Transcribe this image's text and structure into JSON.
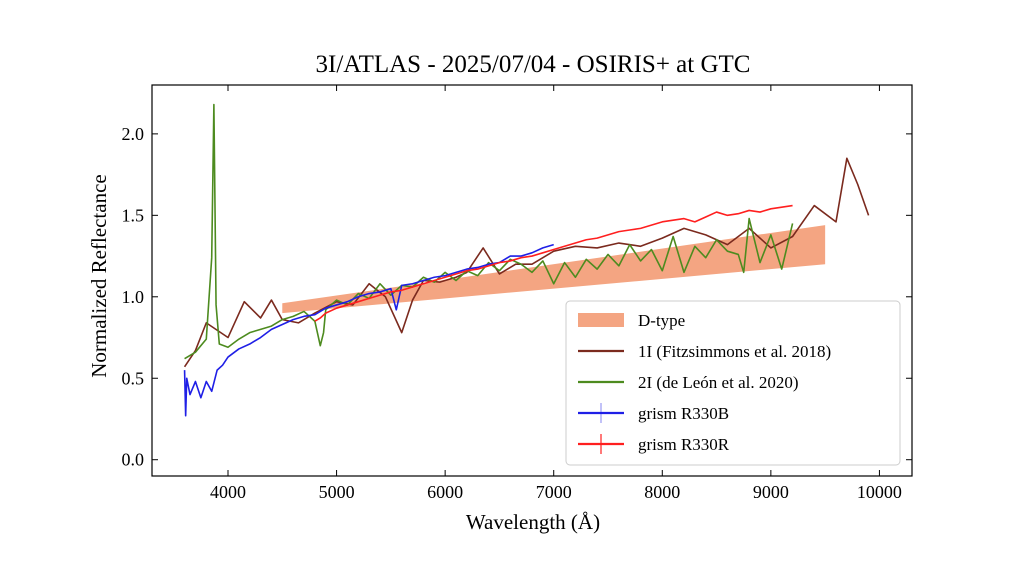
{
  "chart_data": {
    "type": "line",
    "title": "3I/ATLAS - 2025/07/04 - OSIRIS+ at GTC",
    "xlabel": "Wavelength (Å)",
    "ylabel": "Normalized Reflectance",
    "xlim": [
      3300,
      10300
    ],
    "ylim": [
      -0.1,
      2.3
    ],
    "xticks": [
      4000,
      5000,
      6000,
      7000,
      8000,
      9000,
      10000
    ],
    "xtick_labels": [
      "4000",
      "5000",
      "6000",
      "7000",
      "8000",
      "9000",
      "10000"
    ],
    "yticks": [
      0.0,
      0.5,
      1.0,
      1.5,
      2.0
    ],
    "ytick_labels": [
      "0.0",
      "0.5",
      "1.0",
      "1.5",
      "2.0"
    ],
    "grid": false,
    "legend_position": "lower-right",
    "series": [
      {
        "name": "D-type",
        "kind": "band",
        "color": "#f4a582",
        "x": [
          4500,
          9500
        ],
        "lower": [
          0.9,
          1.2
        ],
        "upper": [
          0.96,
          1.44
        ]
      },
      {
        "name": "1I (Fitzsimmons et al. 2018)",
        "kind": "line",
        "color": "#7b2a1e",
        "x": [
          3600,
          3700,
          3800,
          4000,
          4150,
          4300,
          4400,
          4500,
          4650,
          4800,
          5000,
          5150,
          5300,
          5450,
          5600,
          5700,
          5800,
          5950,
          6100,
          6200,
          6350,
          6500,
          6650,
          6800,
          7000,
          7200,
          7400,
          7600,
          7800,
          8000,
          8200,
          8400,
          8600,
          8800,
          9000,
          9200,
          9400,
          9600,
          9700,
          9800,
          9900
        ],
        "y": [
          0.57,
          0.67,
          0.84,
          0.75,
          0.97,
          0.87,
          0.98,
          0.86,
          0.84,
          0.9,
          0.97,
          0.95,
          1.08,
          1.0,
          0.78,
          0.98,
          1.1,
          1.09,
          1.12,
          1.15,
          1.3,
          1.14,
          1.2,
          1.2,
          1.28,
          1.31,
          1.3,
          1.33,
          1.31,
          1.36,
          1.42,
          1.38,
          1.32,
          1.42,
          1.3,
          1.37,
          1.56,
          1.46,
          1.85,
          1.69,
          1.5
        ]
      },
      {
        "name": "2I (de León et al. 2020)",
        "kind": "line",
        "color": "#4d8b1f",
        "x": [
          3600,
          3700,
          3800,
          3850,
          3870,
          3890,
          3920,
          4000,
          4100,
          4200,
          4300,
          4400,
          4500,
          4600,
          4700,
          4800,
          4850,
          4880,
          4900,
          5000,
          5100,
          5200,
          5300,
          5400,
          5500,
          5600,
          5700,
          5800,
          5900,
          6000,
          6100,
          6200,
          6300,
          6400,
          6500,
          6600,
          6700,
          6800,
          6900,
          7000,
          7100,
          7200,
          7300,
          7400,
          7500,
          7600,
          7700,
          7800,
          7900,
          8000,
          8100,
          8200,
          8300,
          8400,
          8500,
          8600,
          8700,
          8750,
          8800,
          8900,
          9000,
          9100,
          9200
        ],
        "y": [
          0.62,
          0.66,
          0.74,
          1.24,
          2.18,
          0.95,
          0.71,
          0.69,
          0.74,
          0.78,
          0.8,
          0.82,
          0.86,
          0.88,
          0.91,
          0.85,
          0.7,
          0.78,
          0.92,
          0.98,
          0.95,
          1.02,
          0.99,
          1.08,
          1.01,
          1.07,
          1.06,
          1.12,
          1.09,
          1.15,
          1.1,
          1.16,
          1.13,
          1.21,
          1.16,
          1.23,
          1.2,
          1.15,
          1.22,
          1.08,
          1.21,
          1.12,
          1.23,
          1.17,
          1.26,
          1.19,
          1.32,
          1.22,
          1.29,
          1.16,
          1.37,
          1.15,
          1.31,
          1.24,
          1.35,
          1.28,
          1.26,
          1.15,
          1.48,
          1.21,
          1.38,
          1.17,
          1.45
        ]
      },
      {
        "name": "grism R330B",
        "kind": "line",
        "color": "#1f1fe6",
        "x": [
          3600,
          3610,
          3620,
          3650,
          3700,
          3750,
          3800,
          3850,
          3900,
          3950,
          4000,
          4100,
          4200,
          4300,
          4400,
          4500,
          4600,
          4700,
          4800,
          4900,
          5000,
          5100,
          5200,
          5300,
          5400,
          5500,
          5550,
          5600,
          5700,
          5800,
          5900,
          6000,
          6100,
          6200,
          6300,
          6400,
          6500,
          6600,
          6700,
          6800,
          6900,
          7000
        ],
        "y": [
          0.55,
          0.27,
          0.5,
          0.4,
          0.48,
          0.38,
          0.48,
          0.42,
          0.55,
          0.58,
          0.63,
          0.68,
          0.71,
          0.75,
          0.8,
          0.83,
          0.86,
          0.88,
          0.89,
          0.93,
          0.95,
          0.97,
          1.0,
          1.02,
          1.03,
          1.05,
          0.92,
          1.07,
          1.08,
          1.1,
          1.12,
          1.13,
          1.15,
          1.17,
          1.18,
          1.2,
          1.21,
          1.25,
          1.25,
          1.27,
          1.3,
          1.32
        ]
      },
      {
        "name": "grism R330R",
        "kind": "line",
        "color": "#ff1f1f",
        "x": [
          4800,
          4850,
          4900,
          5000,
          5100,
          5200,
          5300,
          5400,
          5500,
          5600,
          5700,
          5800,
          5900,
          6000,
          6100,
          6200,
          6300,
          6400,
          6500,
          6600,
          6700,
          6800,
          6900,
          7000,
          7100,
          7200,
          7300,
          7400,
          7500,
          7600,
          7700,
          7800,
          7900,
          8000,
          8100,
          8200,
          8300,
          8400,
          8500,
          8600,
          8700,
          8800,
          8900,
          9000,
          9100,
          9200
        ],
        "y": [
          0.85,
          0.87,
          0.9,
          0.93,
          0.95,
          0.97,
          0.99,
          1.01,
          1.03,
          1.04,
          1.06,
          1.08,
          1.1,
          1.12,
          1.14,
          1.16,
          1.17,
          1.19,
          1.21,
          1.22,
          1.24,
          1.25,
          1.27,
          1.29,
          1.31,
          1.33,
          1.35,
          1.36,
          1.38,
          1.4,
          1.41,
          1.42,
          1.44,
          1.46,
          1.47,
          1.48,
          1.46,
          1.49,
          1.52,
          1.5,
          1.51,
          1.53,
          1.52,
          1.54,
          1.55,
          1.56
        ]
      }
    ]
  }
}
